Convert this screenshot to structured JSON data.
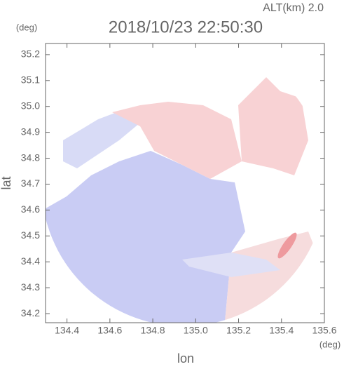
{
  "chart_data": {
    "type": "radar-map",
    "title": "2018/10/23 22:50:30",
    "subtitle": "ALT(km) 2.0",
    "x_label": "lon",
    "y_label": "lat",
    "x_unit": "(deg)",
    "y_unit": "(deg)",
    "xlim": [
      134.3,
      135.6
    ],
    "xticks": [
      134.4,
      134.6,
      134.8,
      {
        "value": 135,
        "label": "135.0"
      },
      135.2,
      135.4,
      135.6
    ],
    "ylim": [
      34.165,
      35.243
    ],
    "yticks": [
      34.2,
      34.3,
      34.4,
      34.5,
      34.6,
      34.7,
      34.8,
      34.9,
      {
        "value": 35,
        "label": "35.0"
      },
      35.1,
      35.2
    ],
    "grid": false
  }
}
